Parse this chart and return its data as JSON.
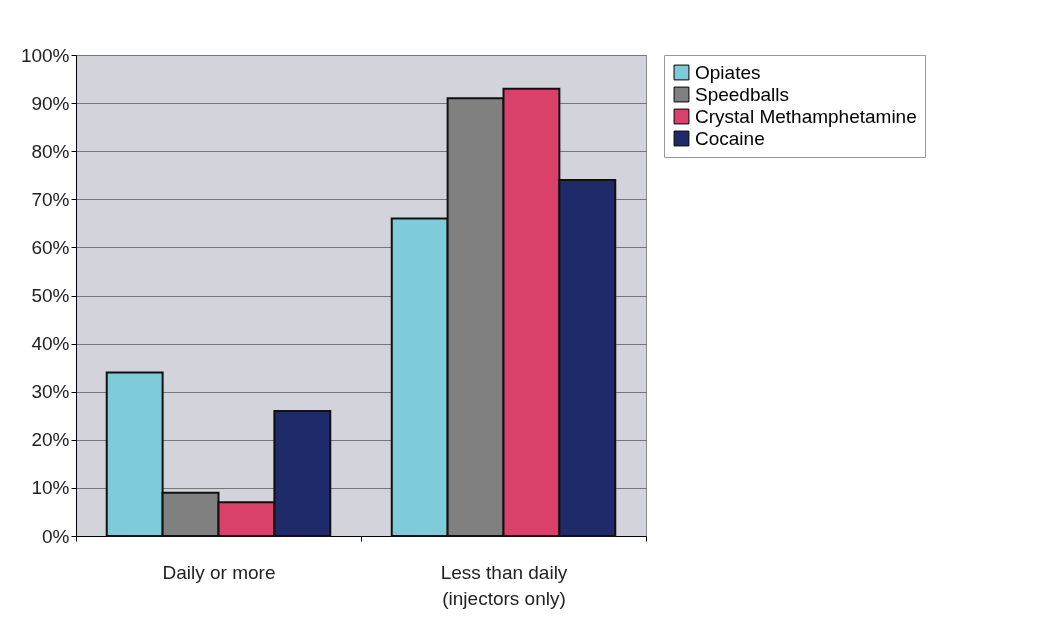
{
  "chart_data": {
    "type": "bar",
    "categories": [
      "Daily or more",
      "Less than daily\n(injectors only)"
    ],
    "series": [
      {
        "name": "Opiates",
        "color": "#7ecbd9",
        "values": [
          34,
          66
        ]
      },
      {
        "name": "Speedballs",
        "color": "#808080",
        "values": [
          9,
          91
        ]
      },
      {
        "name": "Crystal Methamphetamine",
        "color": "#d9416a",
        "values": [
          7,
          93
        ]
      },
      {
        "name": "Cocaine",
        "color": "#1f2a6b",
        "values": [
          26,
          74
        ]
      }
    ],
    "ylim": [
      0,
      100
    ],
    "yticks": [
      {
        "value": 0,
        "label": "0%"
      },
      {
        "value": 10,
        "label": "10%"
      },
      {
        "value": 20,
        "label": "20%"
      },
      {
        "value": 30,
        "label": "30%"
      },
      {
        "value": 40,
        "label": "40%"
      },
      {
        "value": 50,
        "label": "50%"
      },
      {
        "value": 60,
        "label": "60%"
      },
      {
        "value": 70,
        "label": "70%"
      },
      {
        "value": 80,
        "label": "80%"
      },
      {
        "value": 90,
        "label": "90%"
      },
      {
        "value": 100,
        "label": "100%"
      }
    ],
    "grid": "y",
    "legend": "right"
  }
}
